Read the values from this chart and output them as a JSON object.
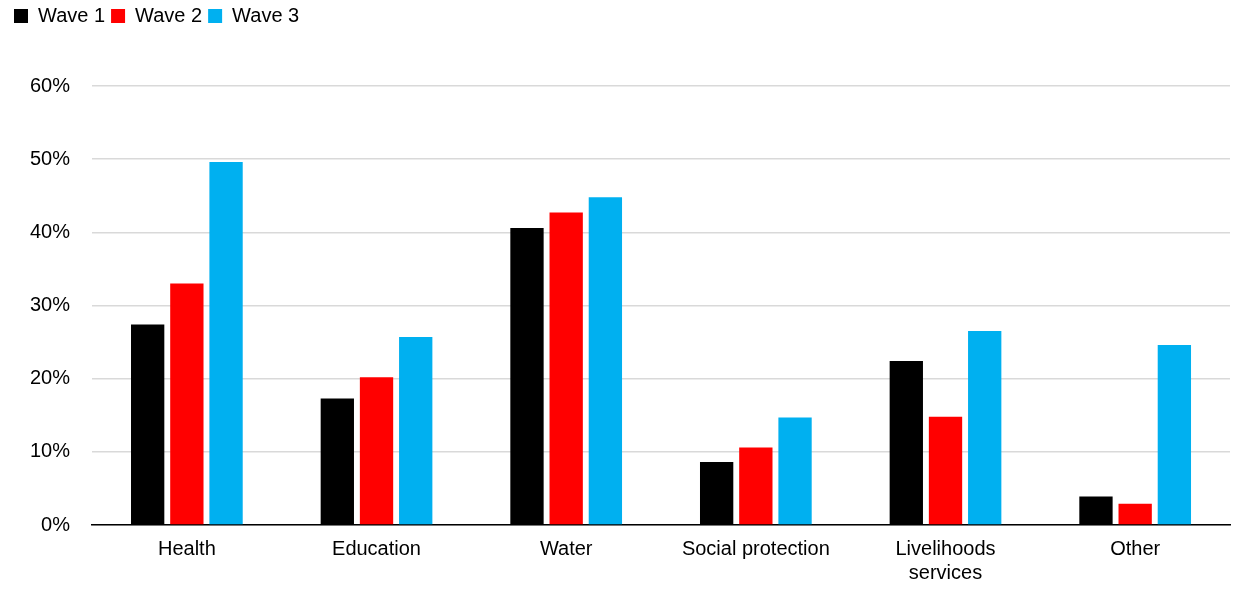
{
  "chart_data": {
    "type": "bar",
    "categories": [
      "Health",
      "Education",
      "Water",
      "Social protection",
      "Livelihoods\nservices",
      "Other"
    ],
    "series": [
      {
        "name": "Wave 1",
        "color": "#000000",
        "values": [
          27.4,
          17.3,
          40.6,
          8.6,
          22.4,
          3.9
        ]
      },
      {
        "name": "Wave 2",
        "color": "#ff0000",
        "values": [
          33.0,
          20.2,
          42.7,
          10.6,
          14.8,
          2.9
        ]
      },
      {
        "name": "Wave 3",
        "color": "#00b0f0",
        "values": [
          49.6,
          25.7,
          44.8,
          14.7,
          26.5,
          24.6
        ]
      }
    ],
    "ylim": [
      0,
      60
    ],
    "yticks": [
      {
        "value": 0,
        "label": "0%"
      },
      {
        "value": 10,
        "label": "10%"
      },
      {
        "value": 20,
        "label": "20%"
      },
      {
        "value": 30,
        "label": "30%"
      },
      {
        "value": 40,
        "label": "40%"
      },
      {
        "value": 50,
        "label": "50%"
      },
      {
        "value": 60,
        "label": "60%"
      }
    ],
    "grid": "y",
    "legend": "top left"
  }
}
